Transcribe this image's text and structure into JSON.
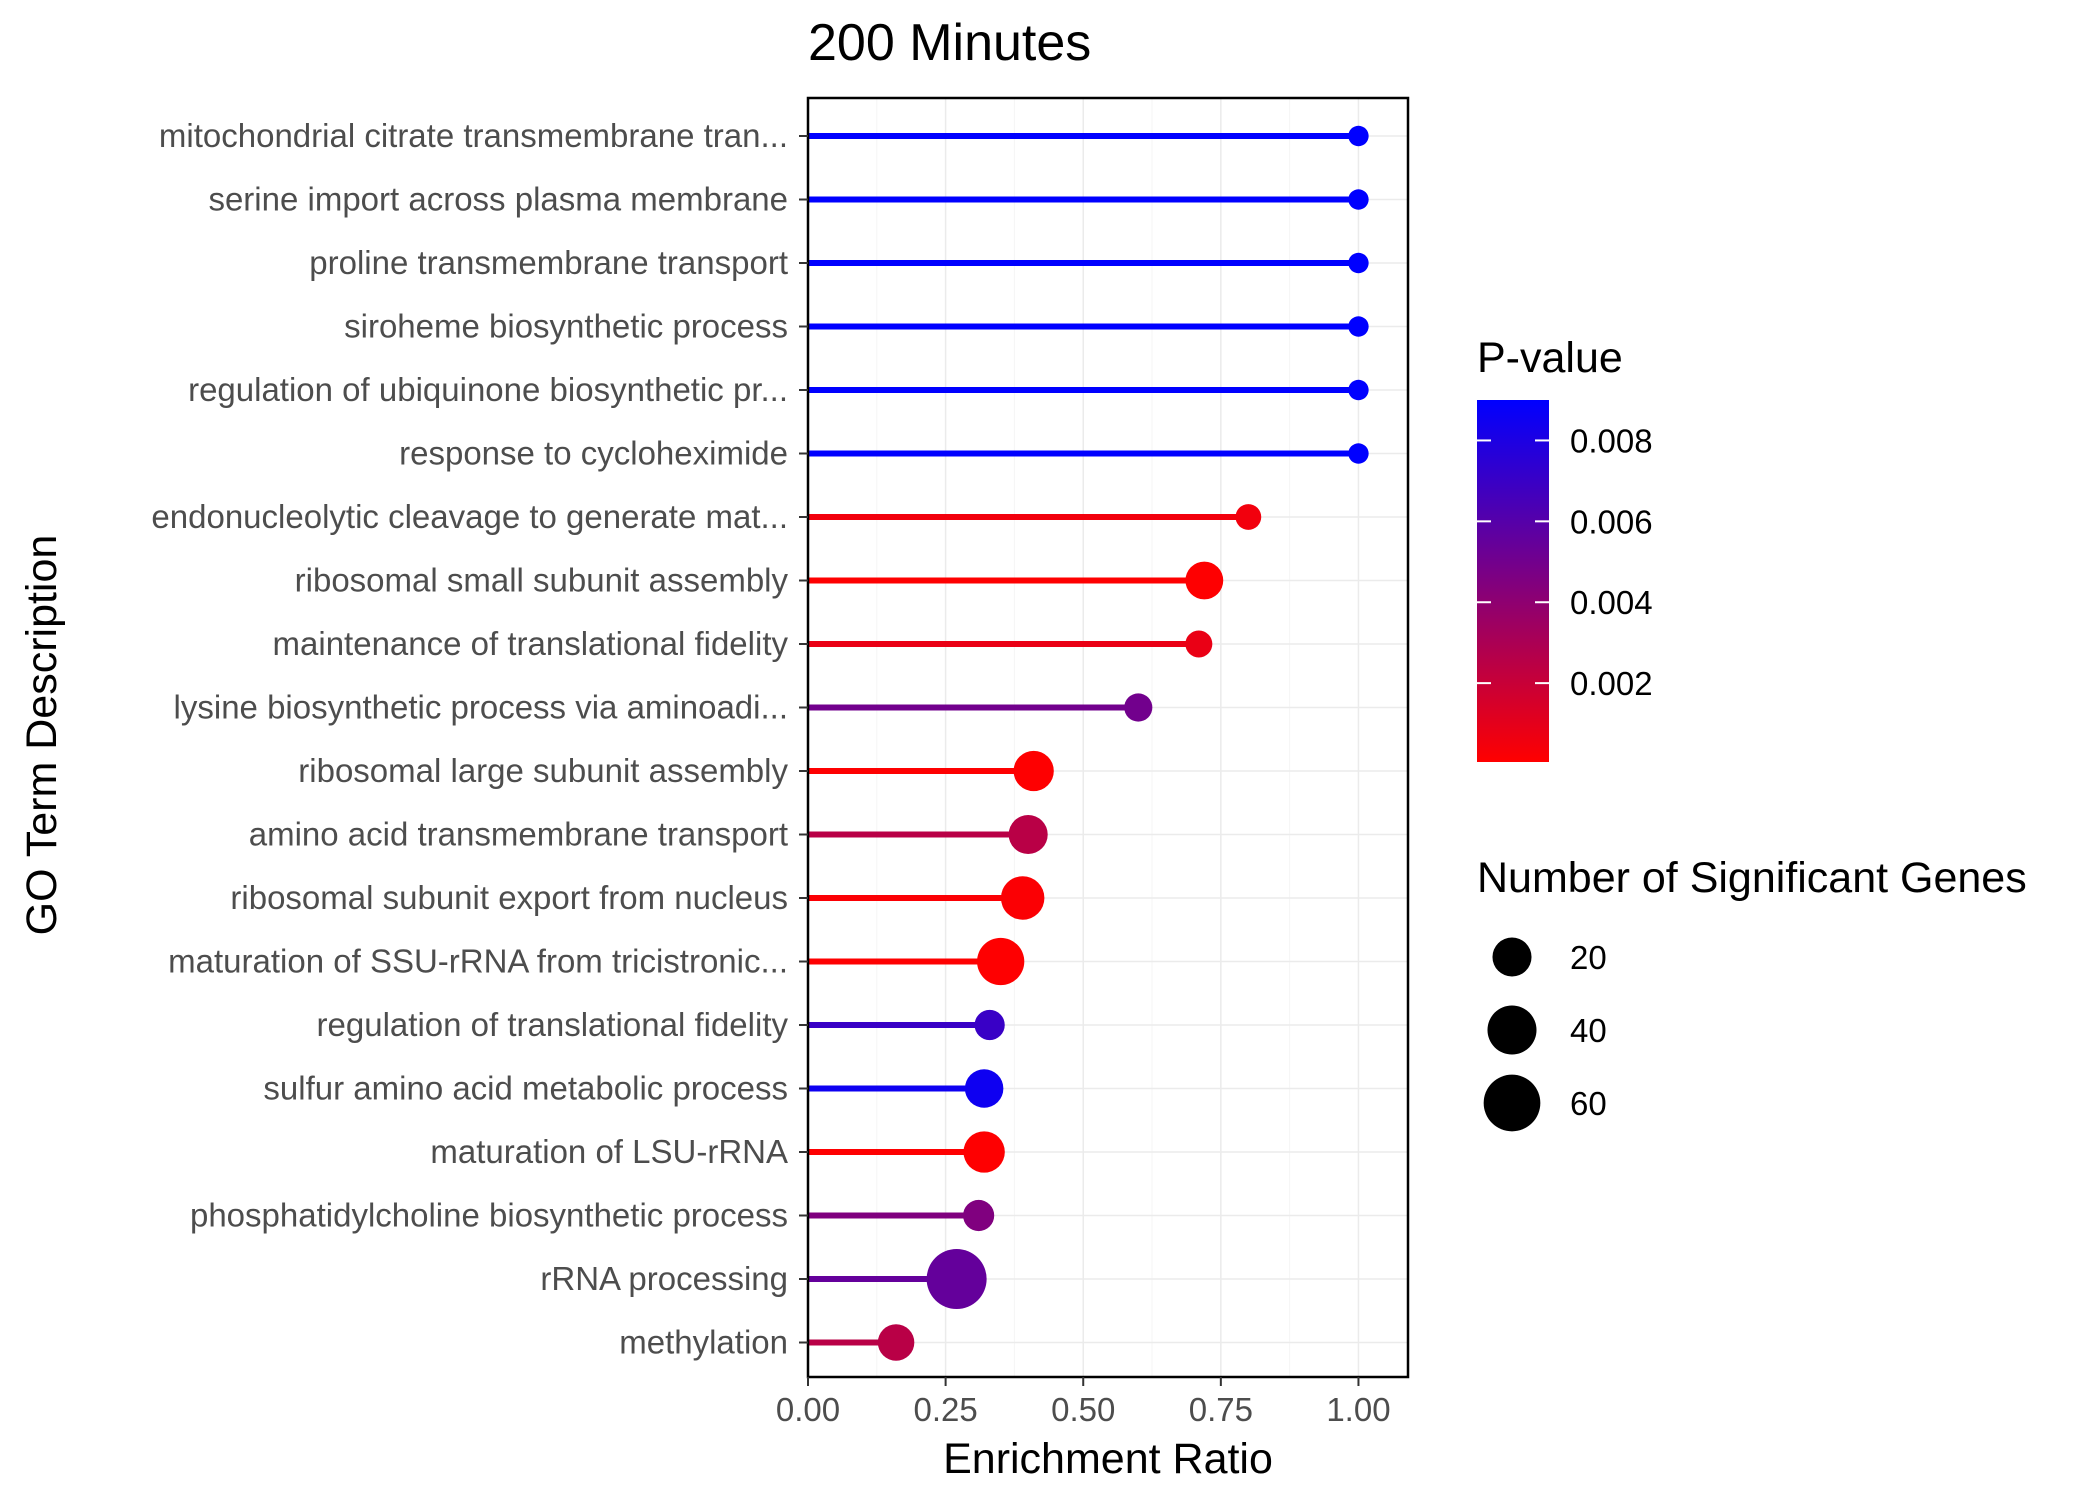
{
  "chart_data": {
    "type": "lollipop",
    "title": "200 Minutes",
    "xlabel": "Enrichment Ratio",
    "ylabel": "GO Term Description",
    "xlim": [
      0,
      1.09
    ],
    "xticks": [
      "0.00",
      "0.25",
      "0.50",
      "0.75",
      "1.00"
    ],
    "xtick_values": [
      0,
      0.25,
      0.5,
      0.75,
      1.0
    ],
    "grid": true,
    "legend_position": "right",
    "color_scale": {
      "title": "P-value",
      "low_color": "#ff0000",
      "high_color": "#0000ff",
      "range": [
        5e-05,
        0.009
      ],
      "tick_labels": [
        "0.008",
        "0.006",
        "0.004",
        "0.002"
      ],
      "tick_values": [
        0.008,
        0.006,
        0.004,
        0.002
      ]
    },
    "size_scale": {
      "title": "Number of Significant Genes",
      "labels": [
        "20",
        "40",
        "60"
      ],
      "values": [
        20,
        40,
        60
      ]
    },
    "points": [
      {
        "term": "mitochondrial citrate transmembrane tran...",
        "ratio": 1.0,
        "pvalue": 0.009,
        "genes": 1
      },
      {
        "term": "serine import across plasma membrane",
        "ratio": 1.0,
        "pvalue": 0.009,
        "genes": 1
      },
      {
        "term": "proline transmembrane transport",
        "ratio": 1.0,
        "pvalue": 0.009,
        "genes": 1
      },
      {
        "term": "siroheme biosynthetic process",
        "ratio": 1.0,
        "pvalue": 0.009,
        "genes": 1
      },
      {
        "term": "regulation of ubiquinone biosynthetic pr...",
        "ratio": 1.0,
        "pvalue": 0.009,
        "genes": 1
      },
      {
        "term": "response to cycloheximide",
        "ratio": 1.0,
        "pvalue": 0.009,
        "genes": 1
      },
      {
        "term": "endonucleolytic cleavage to generate mat...",
        "ratio": 0.8,
        "pvalue": 0.0005,
        "genes": 4
      },
      {
        "term": "ribosomal small subunit assembly",
        "ratio": 0.72,
        "pvalue": 0.0001,
        "genes": 18
      },
      {
        "term": "maintenance of translational fidelity",
        "ratio": 0.71,
        "pvalue": 0.0008,
        "genes": 5
      },
      {
        "term": "lysine biosynthetic process via aminoadi...",
        "ratio": 0.6,
        "pvalue": 0.005,
        "genes": 6
      },
      {
        "term": "ribosomal large subunit assembly",
        "ratio": 0.41,
        "pvalue": 0.0001,
        "genes": 22
      },
      {
        "term": "amino acid transmembrane transport",
        "ratio": 0.4,
        "pvalue": 0.0025,
        "genes": 20
      },
      {
        "term": "ribosomal subunit export from nucleus",
        "ratio": 0.39,
        "pvalue": 0.0002,
        "genes": 28
      },
      {
        "term": "maturation of SSU-rRNA from tricistronic...",
        "ratio": 0.35,
        "pvalue": 0.0001,
        "genes": 36
      },
      {
        "term": "regulation of translational fidelity",
        "ratio": 0.33,
        "pvalue": 0.007,
        "genes": 8
      },
      {
        "term": "sulfur amino acid metabolic process",
        "ratio": 0.32,
        "pvalue": 0.0085,
        "genes": 19
      },
      {
        "term": "maturation of LSU-rRNA",
        "ratio": 0.32,
        "pvalue": 0.0001,
        "genes": 24
      },
      {
        "term": "phosphatidylcholine biosynthetic process",
        "ratio": 0.31,
        "pvalue": 0.0045,
        "genes": 9
      },
      {
        "term": "rRNA processing",
        "ratio": 0.27,
        "pvalue": 0.0055,
        "genes": 70
      },
      {
        "term": "methylation",
        "ratio": 0.16,
        "pvalue": 0.0025,
        "genes": 16
      }
    ]
  }
}
